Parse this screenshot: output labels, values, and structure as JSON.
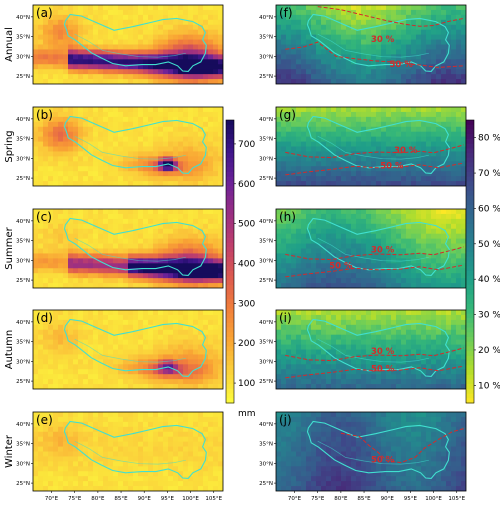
{
  "figure": {
    "background": "#ffffff",
    "precip_colorscale": [
      "#fcfd3c",
      "#fbd13b",
      "#f9a534",
      "#f17f3c",
      "#dc5a4f",
      "#c03f6c",
      "#9a2f82",
      "#6c2298",
      "#3e158a",
      "#160b5c"
    ],
    "percent_colorscale": [
      "#fde725",
      "#b5de2b",
      "#6ece58",
      "#35b779",
      "#1f9e89",
      "#26828e",
      "#31688e",
      "#3e4989",
      "#482878",
      "#440154"
    ],
    "boundary_color": "#40e0d0",
    "contour_color": "#d42b2b"
  },
  "chart_data": [
    {
      "type": "heatmap",
      "panel_label": "(a)",
      "row_label": "Annual",
      "variable": "precipitation",
      "unit": "mm",
      "contours": []
    },
    {
      "type": "heatmap",
      "panel_label": "(b)",
      "row_label": "Spring",
      "variable": "precipitation",
      "unit": "mm",
      "contours": []
    },
    {
      "type": "heatmap",
      "panel_label": "(c)",
      "row_label": "Summer",
      "variable": "precipitation",
      "unit": "mm",
      "contours": []
    },
    {
      "type": "heatmap",
      "panel_label": "(d)",
      "row_label": "Autumn",
      "variable": "precipitation",
      "unit": "mm",
      "contours": []
    },
    {
      "type": "heatmap",
      "panel_label": "(e)",
      "row_label": "Winter",
      "variable": "precipitation",
      "unit": "mm",
      "contours": []
    },
    {
      "type": "heatmap",
      "panel_label": "(f)",
      "row_label": "",
      "variable": "percent",
      "unit": "%",
      "contours": [
        "30 %",
        "50 %"
      ]
    },
    {
      "type": "heatmap",
      "panel_label": "(g)",
      "row_label": "",
      "variable": "percent",
      "unit": "%",
      "contours": [
        "30 %",
        "50 %"
      ]
    },
    {
      "type": "heatmap",
      "panel_label": "(h)",
      "row_label": "",
      "variable": "percent",
      "unit": "%",
      "contours": [
        "30 %",
        "50 %"
      ]
    },
    {
      "type": "heatmap",
      "panel_label": "(i)",
      "row_label": "",
      "variable": "percent",
      "unit": "%",
      "contours": [
        "30 %",
        "50 %"
      ]
    },
    {
      "type": "heatmap",
      "panel_label": "(j)",
      "row_label": "",
      "variable": "percent",
      "unit": "%",
      "contours": [
        "50 %"
      ]
    }
  ],
  "axes": {
    "lat_ticks": [
      "40°N",
      "35°N",
      "30°N",
      "25°N"
    ],
    "lon_ticks": [
      "70°E",
      "75°E",
      "80°E",
      "85°E",
      "90°E",
      "95°E",
      "100°E",
      "105°E"
    ],
    "lat_range": [
      23,
      43
    ],
    "lon_range": [
      66,
      107
    ]
  },
  "colorbar_precip": {
    "ticks": [
      700,
      600,
      500,
      400,
      300,
      200,
      100
    ],
    "tick_labels": [
      "700",
      "600",
      "500",
      "400",
      "300",
      "200",
      "100"
    ],
    "range": [
      50,
      760
    ],
    "unit_label": "mm"
  },
  "colorbar_percent": {
    "ticks": [
      80,
      70,
      60,
      50,
      40,
      30,
      20,
      10
    ],
    "tick_labels": [
      "80 %",
      "70 %",
      "60 %",
      "50 %",
      "40 %",
      "30 %",
      "20 %",
      "10 %"
    ],
    "range": [
      5,
      85
    ]
  }
}
